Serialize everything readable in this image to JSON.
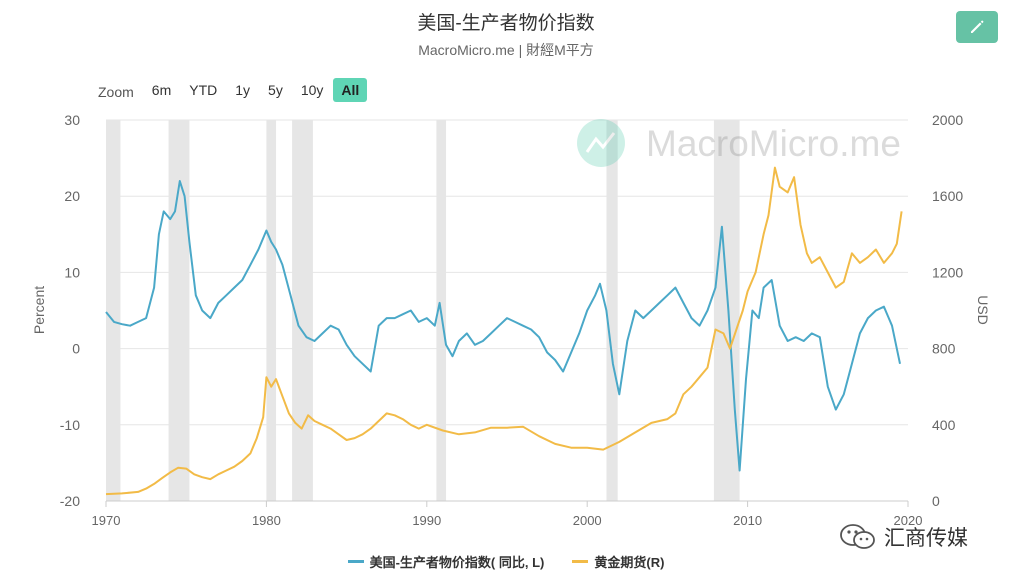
{
  "header": {
    "title": "美国-生产者物价指数",
    "subtitle": "MacroMicro.me | 財經M平方"
  },
  "toolbar": {
    "zoom_label": "Zoom",
    "zoom_options": [
      "6m",
      "YTD",
      "1y",
      "5y",
      "10y",
      "All"
    ],
    "active_zoom": "All",
    "edit_icon": "pencil-icon"
  },
  "watermark": {
    "text": "MacroMicro.me",
    "icon": "macromicro-logo-icon"
  },
  "footer_brand": {
    "text": "汇商传媒",
    "icon": "wechat-icon"
  },
  "colors": {
    "ppi": "#4aa8c8",
    "gold": "#f2bb47",
    "recession": "#e6e6e6",
    "accent": "#5fd5b5"
  },
  "chart_data": {
    "type": "line",
    "title": "美国-生产者物价指数",
    "subtitle": "MacroMicro.me | 財經M平方",
    "x_ticks": [
      1970,
      1980,
      1990,
      2000,
      2010,
      2020
    ],
    "xlim": [
      1970,
      2020
    ],
    "left_axis": {
      "label": "Percent",
      "ylim": [
        -20,
        30
      ],
      "ticks": [
        -20,
        -10,
        0,
        10,
        20,
        30
      ]
    },
    "right_axis": {
      "label": "USD",
      "ylim": [
        0,
        2000
      ],
      "ticks": [
        0,
        400,
        800,
        1200,
        1600,
        2000
      ]
    },
    "recessions": [
      [
        1970.0,
        1970.9
      ],
      [
        1973.9,
        1975.2
      ],
      [
        1980.0,
        1980.6
      ],
      [
        1981.6,
        1982.9
      ],
      [
        1990.6,
        1991.2
      ],
      [
        2001.2,
        2001.9
      ],
      [
        2007.9,
        2009.5
      ]
    ],
    "legend_position": "bottom-center",
    "grid": true,
    "series": [
      {
        "name": "美国-生产者物价指数( 同比, L)",
        "axis": "left",
        "x": [
          1970.0,
          1970.5,
          1971.0,
          1971.5,
          1972.0,
          1972.5,
          1973.0,
          1973.3,
          1973.6,
          1974.0,
          1974.3,
          1974.6,
          1974.9,
          1975.2,
          1975.6,
          1976.0,
          1976.5,
          1977.0,
          1977.5,
          1978.0,
          1978.5,
          1979.0,
          1979.5,
          1980.0,
          1980.3,
          1980.6,
          1981.0,
          1981.5,
          1982.0,
          1982.5,
          1983.0,
          1983.5,
          1984.0,
          1984.5,
          1985.0,
          1985.5,
          1986.0,
          1986.5,
          1987.0,
          1987.5,
          1988.0,
          1988.5,
          1989.0,
          1989.5,
          1990.0,
          1990.5,
          1990.8,
          1991.2,
          1991.6,
          1992.0,
          1992.5,
          1993.0,
          1993.5,
          1994.0,
          1994.5,
          1995.0,
          1995.5,
          1996.0,
          1996.5,
          1997.0,
          1997.5,
          1998.0,
          1998.5,
          1999.0,
          1999.5,
          2000.0,
          2000.5,
          2000.8,
          2001.2,
          2001.6,
          2002.0,
          2002.5,
          2003.0,
          2003.5,
          2004.0,
          2004.5,
          2005.0,
          2005.5,
          2006.0,
          2006.5,
          2007.0,
          2007.5,
          2008.0,
          2008.4,
          2008.8,
          2009.2,
          2009.5,
          2009.9,
          2010.3,
          2010.7,
          2011.0,
          2011.5,
          2012.0,
          2012.5,
          2013.0,
          2013.5,
          2014.0,
          2014.5,
          2015.0,
          2015.5,
          2016.0,
          2016.5,
          2017.0,
          2017.5,
          2018.0,
          2018.5,
          2019.0,
          2019.5
        ],
        "values": [
          4.8,
          3.5,
          3.2,
          3.0,
          3.5,
          4.0,
          8.0,
          15.0,
          18.0,
          17.0,
          18.0,
          22.0,
          20.0,
          14.0,
          7.0,
          5.0,
          4.0,
          6.0,
          7.0,
          8.0,
          9.0,
          11.0,
          13.0,
          15.5,
          14.0,
          13.0,
          11.0,
          7.0,
          3.0,
          1.5,
          1.0,
          2.0,
          3.0,
          2.5,
          0.5,
          -1.0,
          -2.0,
          -3.0,
          3.0,
          4.0,
          4.0,
          4.5,
          5.0,
          3.5,
          4.0,
          3.0,
          6.0,
          0.5,
          -1.0,
          1.0,
          2.0,
          0.5,
          1.0,
          2.0,
          3.0,
          4.0,
          3.5,
          3.0,
          2.5,
          1.5,
          -0.5,
          -1.5,
          -3.0,
          -0.5,
          2.0,
          5.0,
          7.0,
          8.5,
          5.0,
          -2.0,
          -6.0,
          1.0,
          5.0,
          4.0,
          5.0,
          6.0,
          7.0,
          8.0,
          6.0,
          4.0,
          3.0,
          5.0,
          8.0,
          16.0,
          5.0,
          -8.0,
          -16.0,
          -4.0,
          5.0,
          4.0,
          8.0,
          9.0,
          3.0,
          1.0,
          1.5,
          1.0,
          2.0,
          1.5,
          -5.0,
          -8.0,
          -6.0,
          -2.0,
          2.0,
          4.0,
          5.0,
          5.5,
          3.0,
          -2.0
        ]
      },
      {
        "name": "黄金期货(R)",
        "axis": "right",
        "x": [
          1970.0,
          1971.0,
          1972.0,
          1972.5,
          1973.0,
          1973.5,
          1974.0,
          1974.5,
          1975.0,
          1975.5,
          1976.0,
          1976.5,
          1977.0,
          1977.5,
          1978.0,
          1978.5,
          1979.0,
          1979.4,
          1979.8,
          1980.0,
          1980.3,
          1980.6,
          1981.0,
          1981.4,
          1981.8,
          1982.2,
          1982.6,
          1983.0,
          1983.5,
          1984.0,
          1984.5,
          1985.0,
          1985.5,
          1986.0,
          1986.5,
          1987.0,
          1987.5,
          1988.0,
          1988.5,
          1989.0,
          1989.5,
          1990.0,
          1991.0,
          1992.0,
          1993.0,
          1994.0,
          1995.0,
          1996.0,
          1997.0,
          1998.0,
          1999.0,
          2000.0,
          2001.0,
          2002.0,
          2003.0,
          2004.0,
          2005.0,
          2005.5,
          2006.0,
          2006.5,
          2007.0,
          2007.5,
          2008.0,
          2008.5,
          2008.9,
          2009.3,
          2009.7,
          2010.0,
          2010.5,
          2011.0,
          2011.3,
          2011.7,
          2012.0,
          2012.5,
          2012.9,
          2013.3,
          2013.7,
          2014.0,
          2014.5,
          2015.0,
          2015.5,
          2016.0,
          2016.5,
          2017.0,
          2017.5,
          2018.0,
          2018.5,
          2019.0,
          2019.3,
          2019.6
        ],
        "values": [
          36,
          40,
          48,
          65,
          90,
          120,
          150,
          175,
          170,
          140,
          125,
          115,
          140,
          160,
          180,
          210,
          250,
          330,
          440,
          650,
          600,
          640,
          550,
          460,
          410,
          380,
          450,
          420,
          400,
          380,
          350,
          320,
          330,
          350,
          380,
          420,
          460,
          450,
          430,
          400,
          380,
          400,
          370,
          350,
          360,
          385,
          385,
          390,
          340,
          300,
          280,
          280,
          270,
          310,
          360,
          410,
          430,
          460,
          560,
          600,
          650,
          700,
          900,
          880,
          800,
          900,
          1000,
          1100,
          1200,
          1400,
          1500,
          1750,
          1650,
          1620,
          1700,
          1450,
          1300,
          1250,
          1280,
          1200,
          1120,
          1150,
          1300,
          1250,
          1280,
          1320,
          1250,
          1300,
          1350,
          1520
        ]
      }
    ]
  }
}
